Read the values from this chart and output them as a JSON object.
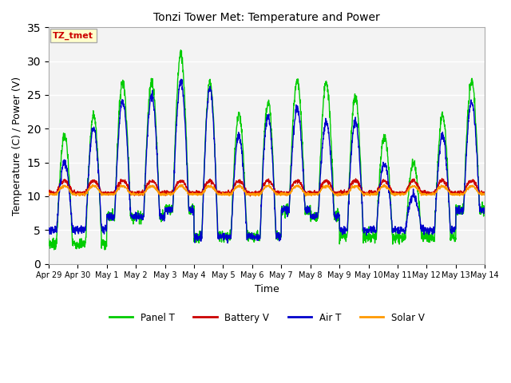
{
  "title": "Tonzi Tower Met: Temperature and Power",
  "xlabel": "Time",
  "ylabel": "Temperature (C) / Power (V)",
  "ylim": [
    0,
    35
  ],
  "yticks": [
    0,
    5,
    10,
    15,
    20,
    25,
    30,
    35
  ],
  "annotation_text": "TZ_tmet",
  "annotation_color": "#cc0000",
  "annotation_bg": "#ffffcc",
  "annotation_border": "#aaaaaa",
  "fig_bg": "#ffffff",
  "plot_bg": "#e8e8e8",
  "band_light": "#ebebeb",
  "band_dark": "#d8d8d8",
  "grid_color": "#ffffff",
  "line_colors": {
    "panel_t": "#00cc00",
    "battery_v": "#cc0000",
    "air_t": "#0000cc",
    "solar_v": "#ff9900"
  },
  "x_tick_labels": [
    "Apr 29",
    "Apr 30",
    "May 1",
    "May 2",
    "May 3",
    "May 4",
    "May 5",
    "May 6",
    "May 7",
    "May 8",
    "May 9",
    "May 10",
    "May 11",
    "May 12",
    "May 13",
    "May 14"
  ],
  "figsize": [
    6.4,
    4.8
  ],
  "dpi": 100
}
